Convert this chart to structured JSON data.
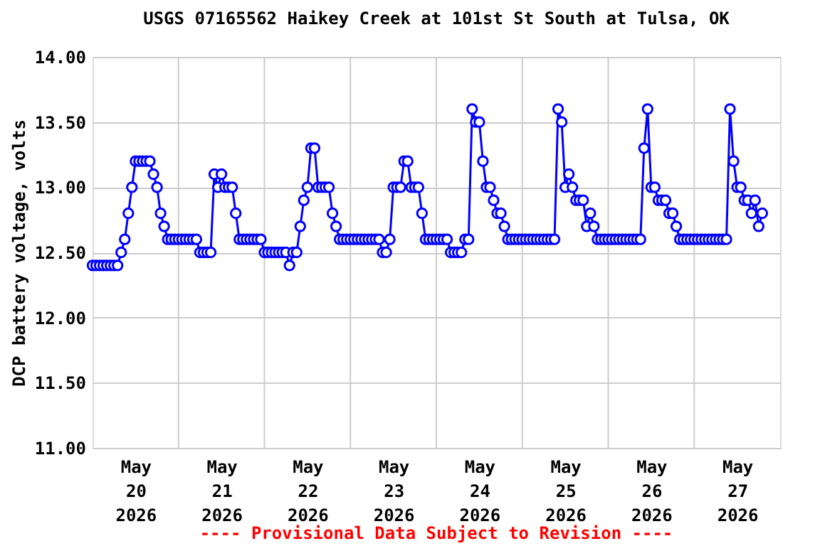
{
  "chart_data": {
    "type": "line",
    "title": "USGS 07165562 Haikey Creek at 101st St South at Tulsa, OK",
    "ylabel": "DCP battery voltage, volts",
    "annotations": [
      "---- Provisional Data Subject to Revision ----"
    ],
    "x": [
      "2026-05-20T00:00",
      "2026-05-20T01:00",
      "2026-05-20T02:00",
      "2026-05-20T03:00",
      "2026-05-20T04:00",
      "2026-05-20T05:00",
      "2026-05-20T06:00",
      "2026-05-20T07:00",
      "2026-05-20T08:00",
      "2026-05-20T09:00",
      "2026-05-20T10:00",
      "2026-05-20T11:00",
      "2026-05-20T12:00",
      "2026-05-20T13:00",
      "2026-05-20T14:00",
      "2026-05-20T15:00",
      "2026-05-20T16:00",
      "2026-05-20T17:00",
      "2026-05-20T18:00",
      "2026-05-20T19:00",
      "2026-05-20T20:00",
      "2026-05-20T21:00",
      "2026-05-20T22:00",
      "2026-05-20T23:00",
      "2026-05-21T00:00",
      "2026-05-21T01:00",
      "2026-05-21T02:00",
      "2026-05-21T03:00",
      "2026-05-21T04:00",
      "2026-05-21T05:00",
      "2026-05-21T06:00",
      "2026-05-21T07:00",
      "2026-05-21T08:00",
      "2026-05-21T09:00",
      "2026-05-21T10:00",
      "2026-05-21T11:00",
      "2026-05-21T12:00",
      "2026-05-21T13:00",
      "2026-05-21T14:00",
      "2026-05-21T15:00",
      "2026-05-21T16:00",
      "2026-05-21T17:00",
      "2026-05-21T18:00",
      "2026-05-21T19:00",
      "2026-05-21T20:00",
      "2026-05-21T21:00",
      "2026-05-21T22:00",
      "2026-05-21T23:00",
      "2026-05-22T00:00",
      "2026-05-22T01:00",
      "2026-05-22T02:00",
      "2026-05-22T03:00",
      "2026-05-22T04:00",
      "2026-05-22T05:00",
      "2026-05-22T06:00",
      "2026-05-22T07:00",
      "2026-05-22T08:00",
      "2026-05-22T09:00",
      "2026-05-22T10:00",
      "2026-05-22T11:00",
      "2026-05-22T12:00",
      "2026-05-22T13:00",
      "2026-05-22T14:00",
      "2026-05-22T15:00",
      "2026-05-22T16:00",
      "2026-05-22T17:00",
      "2026-05-22T18:00",
      "2026-05-22T19:00",
      "2026-05-22T20:00",
      "2026-05-22T21:00",
      "2026-05-22T22:00",
      "2026-05-22T23:00",
      "2026-05-23T00:00",
      "2026-05-23T01:00",
      "2026-05-23T02:00",
      "2026-05-23T03:00",
      "2026-05-23T04:00",
      "2026-05-23T05:00",
      "2026-05-23T06:00",
      "2026-05-23T07:00",
      "2026-05-23T08:00",
      "2026-05-23T09:00",
      "2026-05-23T10:00",
      "2026-05-23T11:00",
      "2026-05-23T12:00",
      "2026-05-23T13:00",
      "2026-05-23T14:00",
      "2026-05-23T15:00",
      "2026-05-23T16:00",
      "2026-05-23T17:00",
      "2026-05-23T18:00",
      "2026-05-23T19:00",
      "2026-05-23T20:00",
      "2026-05-23T21:00",
      "2026-05-23T22:00",
      "2026-05-23T23:00",
      "2026-05-24T00:00",
      "2026-05-24T01:00",
      "2026-05-24T02:00",
      "2026-05-24T03:00",
      "2026-05-24T04:00",
      "2026-05-24T05:00",
      "2026-05-24T06:00",
      "2026-05-24T07:00",
      "2026-05-24T08:00",
      "2026-05-24T09:00",
      "2026-05-24T10:00",
      "2026-05-24T11:00",
      "2026-05-24T12:00",
      "2026-05-24T13:00",
      "2026-05-24T14:00",
      "2026-05-24T15:00",
      "2026-05-24T16:00",
      "2026-05-24T17:00",
      "2026-05-24T18:00",
      "2026-05-24T19:00",
      "2026-05-24T20:00",
      "2026-05-24T21:00",
      "2026-05-24T22:00",
      "2026-05-24T23:00",
      "2026-05-25T00:00",
      "2026-05-25T01:00",
      "2026-05-25T02:00",
      "2026-05-25T03:00",
      "2026-05-25T04:00",
      "2026-05-25T05:00",
      "2026-05-25T06:00",
      "2026-05-25T07:00",
      "2026-05-25T08:00",
      "2026-05-25T09:00",
      "2026-05-25T10:00",
      "2026-05-25T11:00",
      "2026-05-25T12:00",
      "2026-05-25T13:00",
      "2026-05-25T14:00",
      "2026-05-25T15:00",
      "2026-05-25T16:00",
      "2026-05-25T17:00",
      "2026-05-25T18:00",
      "2026-05-25T19:00",
      "2026-05-25T20:00",
      "2026-05-25T21:00",
      "2026-05-25T22:00",
      "2026-05-25T23:00",
      "2026-05-26T00:00",
      "2026-05-26T01:00",
      "2026-05-26T02:00",
      "2026-05-26T03:00",
      "2026-05-26T04:00",
      "2026-05-26T05:00",
      "2026-05-26T06:00",
      "2026-05-26T07:00",
      "2026-05-26T08:00",
      "2026-05-26T09:00",
      "2026-05-26T10:00",
      "2026-05-26T11:00",
      "2026-05-26T12:00",
      "2026-05-26T13:00",
      "2026-05-26T14:00",
      "2026-05-26T15:00",
      "2026-05-26T16:00",
      "2026-05-26T17:00",
      "2026-05-26T18:00",
      "2026-05-26T19:00",
      "2026-05-26T20:00",
      "2026-05-26T21:00",
      "2026-05-26T22:00",
      "2026-05-26T23:00",
      "2026-05-27T00:00",
      "2026-05-27T01:00",
      "2026-05-27T02:00",
      "2026-05-27T03:00",
      "2026-05-27T04:00",
      "2026-05-27T05:00",
      "2026-05-27T06:00",
      "2026-05-27T07:00",
      "2026-05-27T08:00",
      "2026-05-27T09:00",
      "2026-05-27T10:00",
      "2026-05-27T11:00",
      "2026-05-27T12:00",
      "2026-05-27T13:00",
      "2026-05-27T14:00",
      "2026-05-27T15:00",
      "2026-05-27T16:00",
      "2026-05-27T17:00",
      "2026-05-27T18:00",
      "2026-05-27T19:00"
    ],
    "series": [
      {
        "color": "#0000ff",
        "values": [
          12.4,
          12.4,
          12.4,
          12.4,
          12.4,
          12.4,
          12.4,
          12.4,
          12.5,
          12.6,
          12.8,
          13.0,
          13.2,
          13.2,
          13.2,
          13.2,
          13.2,
          13.1,
          13.0,
          12.8,
          12.7,
          12.6,
          12.6,
          12.6,
          12.6,
          12.6,
          12.6,
          12.6,
          12.6,
          12.6,
          12.5,
          12.5,
          12.5,
          12.5,
          13.1,
          13.0,
          13.1,
          13.0,
          13.0,
          13.0,
          12.8,
          12.6,
          12.6,
          12.6,
          12.6,
          12.6,
          12.6,
          12.6,
          12.5,
          12.5,
          12.5,
          12.5,
          12.5,
          12.5,
          12.5,
          12.4,
          12.5,
          12.5,
          12.7,
          12.9,
          13.0,
          13.3,
          13.3,
          13.0,
          13.0,
          13.0,
          13.0,
          12.8,
          12.7,
          12.6,
          12.6,
          12.6,
          12.6,
          12.6,
          12.6,
          12.6,
          12.6,
          12.6,
          12.6,
          12.6,
          12.6,
          12.5,
          12.5,
          12.6,
          13.0,
          13.0,
          13.0,
          13.2,
          13.2,
          13.0,
          13.0,
          13.0,
          12.8,
          12.6,
          12.6,
          12.6,
          12.6,
          12.6,
          12.6,
          12.6,
          12.5,
          12.5,
          12.5,
          12.5,
          12.6,
          12.6,
          13.6,
          13.5,
          13.5,
          13.2,
          13.0,
          13.0,
          12.9,
          12.8,
          12.8,
          12.7,
          12.6,
          12.6,
          12.6,
          12.6,
          12.6,
          12.6,
          12.6,
          12.6,
          12.6,
          12.6,
          12.6,
          12.6,
          12.6,
          12.6,
          13.6,
          13.5,
          13.0,
          13.1,
          13.0,
          12.9,
          12.9,
          12.9,
          12.7,
          12.8,
          12.7,
          12.6,
          12.6,
          12.6,
          12.6,
          12.6,
          12.6,
          12.6,
          12.6,
          12.6,
          12.6,
          12.6,
          12.6,
          12.6,
          13.3,
          13.6,
          13.0,
          13.0,
          12.9,
          12.9,
          12.9,
          12.8,
          12.8,
          12.7,
          12.6,
          12.6,
          12.6,
          12.6,
          12.6,
          12.6,
          12.6,
          12.6,
          12.6,
          12.6,
          12.6,
          12.6,
          12.6,
          12.6,
          13.6,
          13.2,
          13.0,
          13.0,
          12.9,
          12.9,
          12.8,
          12.9,
          12.7,
          12.8
        ]
      }
    ],
    "xlim": [
      "2026-05-20T00:00",
      "2026-05-28T00:00"
    ],
    "xticks": [
      {
        "value": "2026-05-20T12:00",
        "label": "May\n20\n2026"
      },
      {
        "value": "2026-05-21T00:00",
        "label": null
      },
      {
        "value": "2026-05-21T12:00",
        "label": "May\n21\n2026"
      },
      {
        "value": "2026-05-22T00:00",
        "label": null
      },
      {
        "value": "2026-05-22T12:00",
        "label": "May\n22\n2026"
      },
      {
        "value": "2026-05-23T00:00",
        "label": null
      },
      {
        "value": "2026-05-23T12:00",
        "label": "May\n23\n2026"
      },
      {
        "value": "2026-05-24T00:00",
        "label": null
      },
      {
        "value": "2026-05-24T12:00",
        "label": "May\n24\n2026"
      },
      {
        "value": "2026-05-25T00:00",
        "label": null
      },
      {
        "value": "2026-05-25T12:00",
        "label": "May\n25\n2026"
      },
      {
        "value": "2026-05-26T00:00",
        "label": null
      },
      {
        "value": "2026-05-26T12:00",
        "label": "May\n26\n2026"
      },
      {
        "value": "2026-05-27T00:00",
        "label": null
      },
      {
        "value": "2026-05-27T12:00",
        "label": "May\n27\n2026"
      }
    ],
    "ylim": [
      11,
      14
    ],
    "yticks": [
      {
        "value": 11,
        "label": "11.00"
      },
      {
        "value": 11.5,
        "label": "11.50"
      },
      {
        "value": 12,
        "label": "12.00"
      },
      {
        "value": 12.5,
        "label": "12.50"
      },
      {
        "value": 13,
        "label": "13.00"
      },
      {
        "value": 13.5,
        "label": "13.50"
      },
      {
        "value": 14,
        "label": "14.00"
      }
    ],
    "grid": true,
    "legend": false,
    "marker": "circle",
    "line_style": "solid"
  }
}
